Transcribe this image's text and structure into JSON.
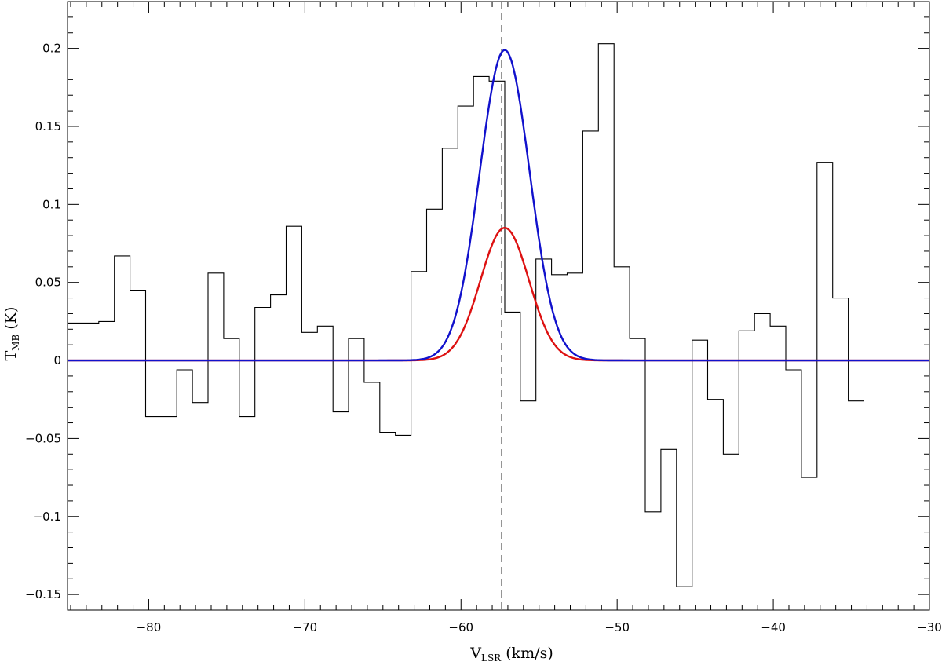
{
  "chart_data": {
    "type": "line",
    "title": "",
    "xlabel": {
      "main": "V",
      "sub": "LSR",
      "unit": " (km/s)"
    },
    "ylabel": {
      "main": "T",
      "sub": "MB",
      "unit": " (K)"
    },
    "xlim": [
      -85.2,
      -30
    ],
    "ylim": [
      -0.16,
      0.23
    ],
    "x_ticks": [
      -80,
      -70,
      -60,
      -50,
      -40,
      -30
    ],
    "x_tick_labels": [
      "−80",
      "−70",
      "−60",
      "−50",
      "−40",
      "−30"
    ],
    "y_ticks": [
      -0.15,
      -0.1,
      -0.05,
      0,
      0.05,
      0.1,
      0.15,
      0.2
    ],
    "y_tick_labels": [
      "−0.15",
      "−0.1",
      "−0.05",
      "0",
      "0.05",
      "0.1",
      "0.15",
      "0.2"
    ],
    "grid": false,
    "vline": {
      "x": -57.4,
      "style": "dashed",
      "color": "#555555"
    },
    "series": [
      {
        "kind": "histogram",
        "color": "#000000",
        "x_start": -85.2,
        "bin_width": 1.0,
        "values": [
          0.024,
          0.024,
          0.025,
          0.067,
          0.045,
          -0.036,
          -0.036,
          -0.006,
          -0.027,
          0.056,
          0.014,
          -0.036,
          0.034,
          0.042,
          0.086,
          0.018,
          0.022,
          -0.033,
          0.014,
          -0.014,
          -0.046,
          -0.048,
          0.057,
          0.097,
          0.136,
          0.163,
          0.182,
          0.179,
          0.031,
          -0.026,
          0.065,
          0.055,
          0.056,
          0.147,
          0.203,
          0.06,
          0.014,
          -0.097,
          -0.057,
          -0.145,
          0.013,
          -0.025,
          -0.06,
          0.019,
          0.03,
          0.022,
          -0.006,
          -0.075,
          0.127,
          0.04,
          -0.026
        ]
      },
      {
        "kind": "gaussian",
        "color": "#dd1111",
        "amplitude": 0.085,
        "center": -57.2,
        "sigma": 1.55
      },
      {
        "kind": "gaussian",
        "color": "#1111cc",
        "amplitude": 0.199,
        "center": -57.2,
        "sigma": 1.6
      }
    ]
  }
}
